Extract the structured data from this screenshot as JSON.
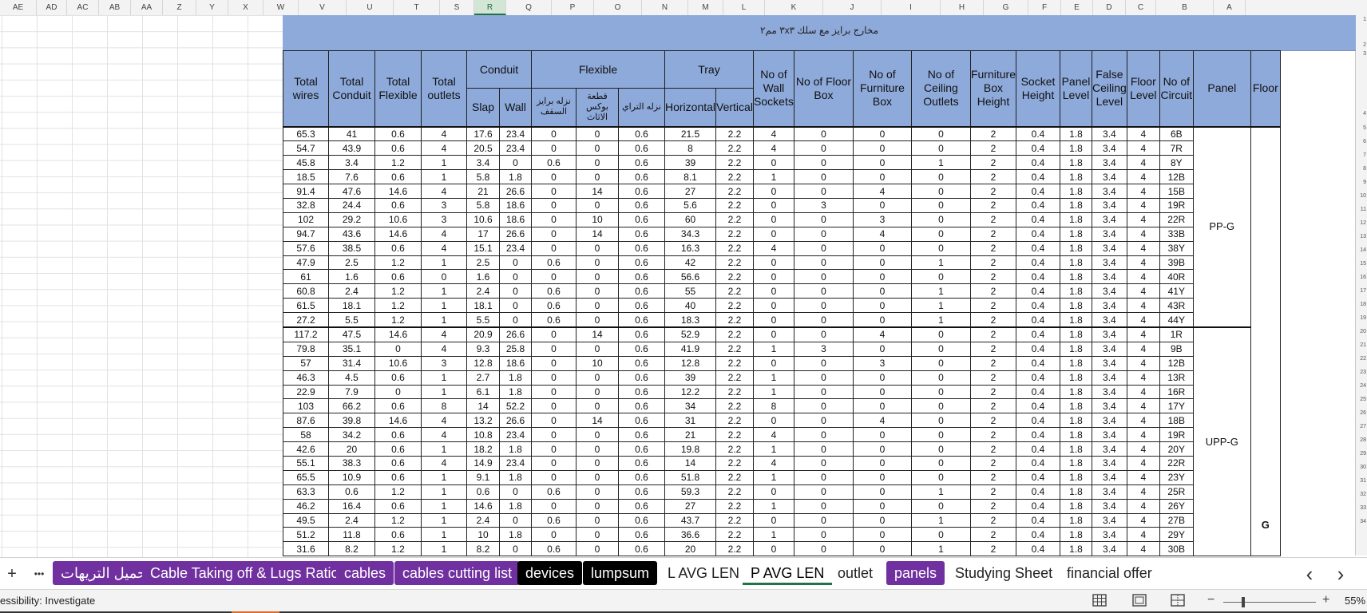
{
  "column_letters": [
    "AE",
    "AD",
    "AC",
    "AB",
    "AA",
    "Z",
    "Y",
    "X",
    "W",
    "V",
    "U",
    "T",
    "S",
    "R",
    "Q",
    "P",
    "O",
    "N",
    "M",
    "L",
    "K",
    "J",
    "I",
    "H",
    "G",
    "F",
    "E",
    "D",
    "C",
    "B",
    "A"
  ],
  "selected_column": "R",
  "sheet_title": "مخارج برايز مع سلك ٣x٣ مم٢",
  "headers": {
    "total_wires": "Total wires",
    "total_conduit": "Total Conduit",
    "total_flexible": "Total Flexible",
    "total_outlets": "Total outlets",
    "conduit": "Conduit",
    "slap": "Slap",
    "wall": "Wall",
    "flexible": "Flexible",
    "flex_ceiling": "نزله برايز السقف",
    "flex_box": "قطعة بوكس الاثاث",
    "flex_tray": "نزله التراي",
    "tray": "Tray",
    "horizontal": "Horizontal",
    "vertical": "Vertical",
    "wall_sockets": "No of Wall Sockets",
    "floor_box": "No of Floor Box",
    "furniture_box": "No of Furniture Box",
    "ceiling_outlets": "No of Ceiling Outlets",
    "furniture_box_height": "Furniture Box Height",
    "socket_height": "Socket Height",
    "panel_level": "Panel Level",
    "false_ceiling_level": "False Ceiling Level",
    "floor_level": "Floor Level",
    "no_of_circuit": "No of Circuit",
    "panel": "Panel",
    "floor": "Floor"
  },
  "row_numbers": [
    "1",
    "2",
    "3",
    "4",
    "5",
    "6",
    "7",
    "8",
    "9",
    "10",
    "11",
    "12",
    "13",
    "14",
    "15",
    "16",
    "17",
    "18",
    "19",
    "20",
    "21",
    "22",
    "23",
    "24",
    "25",
    "26",
    "27",
    "28",
    "29",
    "30",
    "31",
    "32",
    "33",
    "34"
  ],
  "groups": [
    {
      "panel": "PP-G",
      "rows": [
        [
          "65.3",
          "41",
          "0.6",
          "4",
          "17.6",
          "23.4",
          "0",
          "0",
          "0.6",
          "21.5",
          "2.2",
          "4",
          "0",
          "0",
          "0",
          "2",
          "0.4",
          "1.8",
          "3.4",
          "4",
          "6B"
        ],
        [
          "54.7",
          "43.9",
          "0.6",
          "4",
          "20.5",
          "23.4",
          "0",
          "0",
          "0.6",
          "8",
          "2.2",
          "4",
          "0",
          "0",
          "0",
          "2",
          "0.4",
          "1.8",
          "3.4",
          "4",
          "7R"
        ],
        [
          "45.8",
          "3.4",
          "1.2",
          "1",
          "3.4",
          "0",
          "0.6",
          "0",
          "0.6",
          "39",
          "2.2",
          "0",
          "0",
          "0",
          "1",
          "2",
          "0.4",
          "1.8",
          "3.4",
          "4",
          "8Y"
        ],
        [
          "18.5",
          "7.6",
          "0.6",
          "1",
          "5.8",
          "1.8",
          "0",
          "0",
          "0.6",
          "8.1",
          "2.2",
          "1",
          "0",
          "0",
          "0",
          "2",
          "0.4",
          "1.8",
          "3.4",
          "4",
          "12B"
        ],
        [
          "91.4",
          "47.6",
          "14.6",
          "4",
          "21",
          "26.6",
          "0",
          "14",
          "0.6",
          "27",
          "2.2",
          "0",
          "0",
          "4",
          "0",
          "2",
          "0.4",
          "1.8",
          "3.4",
          "4",
          "15B"
        ],
        [
          "32.8",
          "24.4",
          "0.6",
          "3",
          "5.8",
          "18.6",
          "0",
          "0",
          "0.6",
          "5.6",
          "2.2",
          "0",
          "3",
          "0",
          "0",
          "2",
          "0.4",
          "1.8",
          "3.4",
          "4",
          "19R"
        ],
        [
          "102",
          "29.2",
          "10.6",
          "3",
          "10.6",
          "18.6",
          "0",
          "10",
          "0.6",
          "60",
          "2.2",
          "0",
          "0",
          "3",
          "0",
          "2",
          "0.4",
          "1.8",
          "3.4",
          "4",
          "22R"
        ],
        [
          "94.7",
          "43.6",
          "14.6",
          "4",
          "17",
          "26.6",
          "0",
          "14",
          "0.6",
          "34.3",
          "2.2",
          "0",
          "0",
          "4",
          "0",
          "2",
          "0.4",
          "1.8",
          "3.4",
          "4",
          "33B"
        ],
        [
          "57.6",
          "38.5",
          "0.6",
          "4",
          "15.1",
          "23.4",
          "0",
          "0",
          "0.6",
          "16.3",
          "2.2",
          "4",
          "0",
          "0",
          "0",
          "2",
          "0.4",
          "1.8",
          "3.4",
          "4",
          "38Y"
        ],
        [
          "47.9",
          "2.5",
          "1.2",
          "1",
          "2.5",
          "0",
          "0.6",
          "0",
          "0.6",
          "42",
          "2.2",
          "0",
          "0",
          "0",
          "1",
          "2",
          "0.4",
          "1.8",
          "3.4",
          "4",
          "39B"
        ],
        [
          "61",
          "1.6",
          "0.6",
          "0",
          "1.6",
          "0",
          "0",
          "0",
          "0.6",
          "56.6",
          "2.2",
          "0",
          "0",
          "0",
          "0",
          "2",
          "0.4",
          "1.8",
          "3.4",
          "4",
          "40R"
        ],
        [
          "60.8",
          "2.4",
          "1.2",
          "1",
          "2.4",
          "0",
          "0.6",
          "0",
          "0.6",
          "55",
          "2.2",
          "0",
          "0",
          "0",
          "1",
          "2",
          "0.4",
          "1.8",
          "3.4",
          "4",
          "41Y"
        ],
        [
          "61.5",
          "18.1",
          "1.2",
          "1",
          "18.1",
          "0",
          "0.6",
          "0",
          "0.6",
          "40",
          "2.2",
          "0",
          "0",
          "0",
          "1",
          "2",
          "0.4",
          "1.8",
          "3.4",
          "4",
          "43R"
        ],
        [
          "27.2",
          "5.5",
          "1.2",
          "1",
          "5.5",
          "0",
          "0.6",
          "0",
          "0.6",
          "18.3",
          "2.2",
          "0",
          "0",
          "0",
          "1",
          "2",
          "0.4",
          "1.8",
          "3.4",
          "4",
          "44Y"
        ]
      ]
    },
    {
      "panel": "UPP-G",
      "rows": [
        [
          "117.2",
          "47.5",
          "14.6",
          "4",
          "20.9",
          "26.6",
          "0",
          "14",
          "0.6",
          "52.9",
          "2.2",
          "0",
          "0",
          "4",
          "0",
          "2",
          "0.4",
          "1.8",
          "3.4",
          "4",
          "1R"
        ],
        [
          "79.8",
          "35.1",
          "0",
          "4",
          "9.3",
          "25.8",
          "0",
          "0",
          "0.6",
          "41.9",
          "2.2",
          "1",
          "3",
          "0",
          "0",
          "2",
          "0.4",
          "1.8",
          "3.4",
          "4",
          "9B"
        ],
        [
          "57",
          "31.4",
          "10.6",
          "3",
          "12.8",
          "18.6",
          "0",
          "10",
          "0.6",
          "12.8",
          "2.2",
          "0",
          "0",
          "3",
          "0",
          "2",
          "0.4",
          "1.8",
          "3.4",
          "4",
          "12B"
        ],
        [
          "46.3",
          "4.5",
          "0.6",
          "1",
          "2.7",
          "1.8",
          "0",
          "0",
          "0.6",
          "39",
          "2.2",
          "1",
          "0",
          "0",
          "0",
          "2",
          "0.4",
          "1.8",
          "3.4",
          "4",
          "13R"
        ],
        [
          "22.9",
          "7.9",
          "0",
          "1",
          "6.1",
          "1.8",
          "0",
          "0",
          "0.6",
          "12.2",
          "2.2",
          "1",
          "0",
          "0",
          "0",
          "2",
          "0.4",
          "1.8",
          "3.4",
          "4",
          "16R"
        ],
        [
          "103",
          "66.2",
          "0.6",
          "8",
          "14",
          "52.2",
          "0",
          "0",
          "0.6",
          "34",
          "2.2",
          "8",
          "0",
          "0",
          "0",
          "2",
          "0.4",
          "1.8",
          "3.4",
          "4",
          "17Y"
        ],
        [
          "87.6",
          "39.8",
          "14.6",
          "4",
          "13.2",
          "26.6",
          "0",
          "14",
          "0.6",
          "31",
          "2.2",
          "0",
          "0",
          "4",
          "0",
          "2",
          "0.4",
          "1.8",
          "3.4",
          "4",
          "18B"
        ],
        [
          "58",
          "34.2",
          "0.6",
          "4",
          "10.8",
          "23.4",
          "0",
          "0",
          "0.6",
          "21",
          "2.2",
          "4",
          "0",
          "0",
          "0",
          "2",
          "0.4",
          "1.8",
          "3.4",
          "4",
          "19R"
        ],
        [
          "42.6",
          "20",
          "0.6",
          "1",
          "18.2",
          "1.8",
          "0",
          "0",
          "0.6",
          "19.8",
          "2.2",
          "1",
          "0",
          "0",
          "0",
          "2",
          "0.4",
          "1.8",
          "3.4",
          "4",
          "20Y"
        ],
        [
          "55.1",
          "38.3",
          "0.6",
          "4",
          "14.9",
          "23.4",
          "0",
          "0",
          "0.6",
          "14",
          "2.2",
          "4",
          "0",
          "0",
          "0",
          "2",
          "0.4",
          "1.8",
          "3.4",
          "4",
          "22R"
        ],
        [
          "65.5",
          "10.9",
          "0.6",
          "1",
          "9.1",
          "1.8",
          "0",
          "0",
          "0.6",
          "51.8",
          "2.2",
          "1",
          "0",
          "0",
          "0",
          "2",
          "0.4",
          "1.8",
          "3.4",
          "4",
          "23Y"
        ],
        [
          "63.3",
          "0.6",
          "1.2",
          "1",
          "0.6",
          "0",
          "0.6",
          "0",
          "0.6",
          "59.3",
          "2.2",
          "0",
          "0",
          "0",
          "1",
          "2",
          "0.4",
          "1.8",
          "3.4",
          "4",
          "25R"
        ],
        [
          "46.2",
          "16.4",
          "0.6",
          "1",
          "14.6",
          "1.8",
          "0",
          "0",
          "0.6",
          "27",
          "2.2",
          "1",
          "0",
          "0",
          "0",
          "2",
          "0.4",
          "1.8",
          "3.4",
          "4",
          "26Y"
        ],
        [
          "49.5",
          "2.4",
          "1.2",
          "1",
          "2.4",
          "0",
          "0.6",
          "0",
          "0.6",
          "43.7",
          "2.2",
          "0",
          "0",
          "0",
          "1",
          "2",
          "0.4",
          "1.8",
          "3.4",
          "4",
          "27B"
        ],
        [
          "51.2",
          "11.8",
          "0.6",
          "1",
          "10",
          "1.8",
          "0",
          "0",
          "0.6",
          "36.6",
          "2.2",
          "1",
          "0",
          "0",
          "0",
          "2",
          "0.4",
          "1.8",
          "3.4",
          "4",
          "29Y"
        ],
        [
          "31.6",
          "8.2",
          "1.2",
          "1",
          "8.2",
          "0",
          "0.6",
          "0",
          "0.6",
          "20",
          "2.2",
          "0",
          "0",
          "0",
          "1",
          "2",
          "0.4",
          "1.8",
          "3.4",
          "4",
          "30B"
        ]
      ]
    }
  ],
  "floor_value": "G",
  "sheet_tabs": [
    {
      "label": "تحميل التريهات",
      "style": "purple"
    },
    {
      "label": "Cable Taking off & Lugs Ratio",
      "style": "purple"
    },
    {
      "label": "cables",
      "style": "purple"
    },
    {
      "label": "cables cutting list",
      "style": "purple"
    },
    {
      "label": "devices",
      "style": "black"
    },
    {
      "label": "lumpsum",
      "style": "black"
    },
    {
      "label": "L AVG LEN",
      "style": "plain"
    },
    {
      "label": "P AVG LEN",
      "style": "active"
    },
    {
      "label": "outlet",
      "style": "plain"
    },
    {
      "label": "panels",
      "style": "purple"
    },
    {
      "label": "Studying Sheet",
      "style": "plain"
    },
    {
      "label": "financial offer",
      "style": "plain"
    }
  ],
  "tabbar": {
    "add": "+",
    "more": "•••",
    "prev": "‹",
    "next": "›"
  },
  "status": {
    "accessibility": "essibility: Investigate",
    "zoom": "55%"
  },
  "colors": {
    "header_fill": "#8eaadb",
    "tab_purple": "#7030a0",
    "tab_black": "#000000",
    "excel_green": "#217346"
  }
}
